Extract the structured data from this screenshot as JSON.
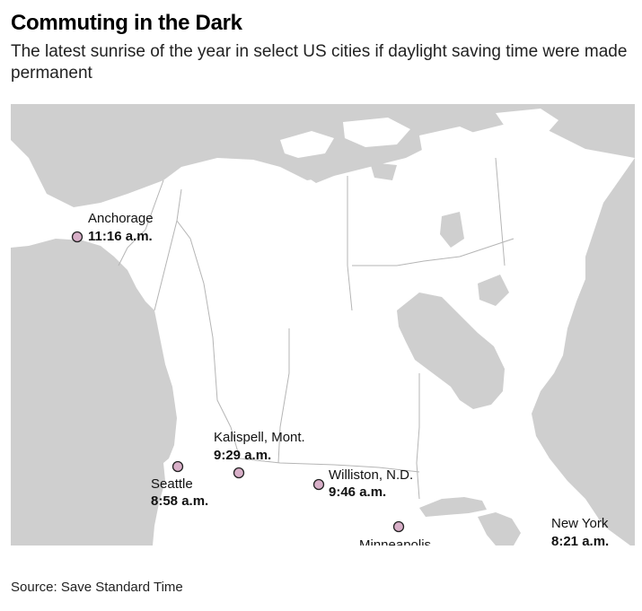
{
  "title": "Commuting in the Dark",
  "subtitle": "The latest sunrise of the year in select US cities if daylight saving time were made permanent",
  "source": "Source: Save Standard Time",
  "colors": {
    "water": "#cfcfcf",
    "land": "#ffffff",
    "border": "#b5b5b5",
    "marker": "#d8afc8"
  },
  "cities": [
    {
      "name": "Anchorage",
      "time": "11:16 a.m."
    },
    {
      "name": "Seattle",
      "time": "8:58 a.m."
    },
    {
      "name": "Kalispell, Mont.",
      "time": "9:29 a.m."
    },
    {
      "name": "Williston, N.D.",
      "time": "9:46 a.m."
    },
    {
      "name": "Minneapolis",
      "time": ""
    },
    {
      "name": "New York",
      "time": "8:21 a.m."
    }
  ]
}
